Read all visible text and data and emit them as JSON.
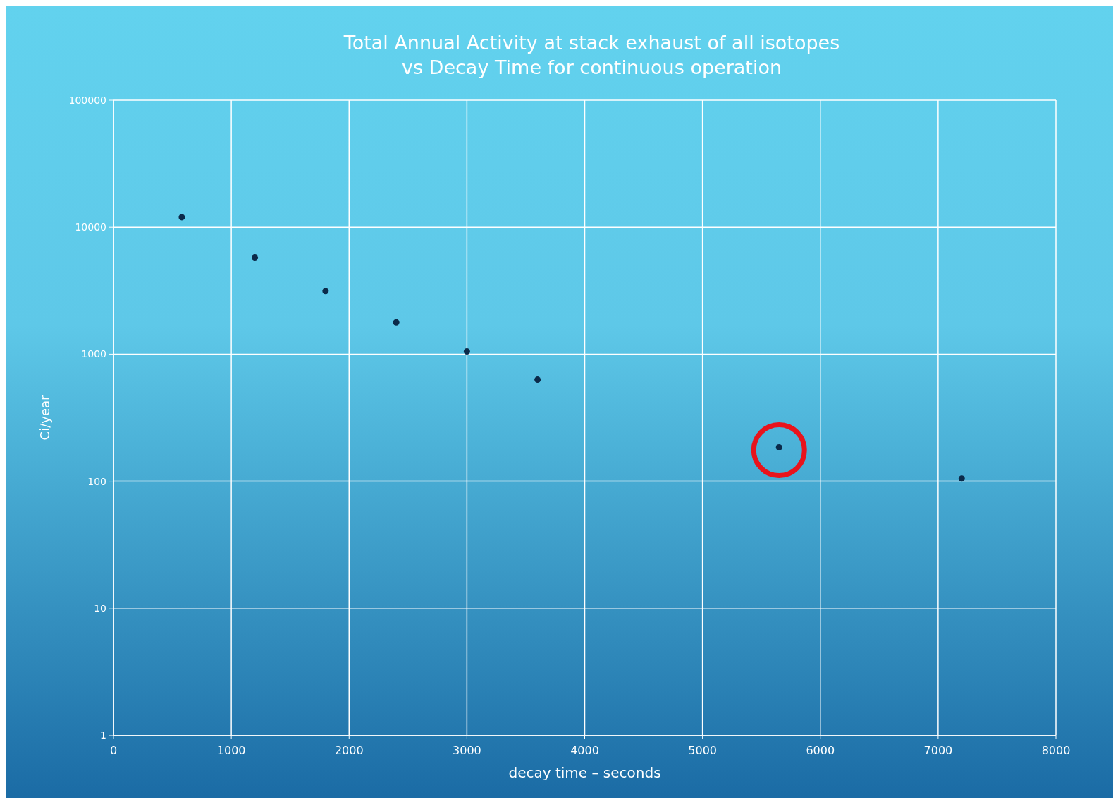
{
  "chart_data": {
    "type": "scatter",
    "title": "Total Annual Activity at stack exhaust of all isotopes\nvs Decay Time for continuous operation",
    "xlabel": "decay time – seconds",
    "ylabel": "Ci/year",
    "x": [
      580,
      1200,
      1800,
      2400,
      3000,
      3600,
      5650,
      7200
    ],
    "series": [
      {
        "color": "#0b2a4a",
        "values": [
          12000,
          5750,
          3140,
          1780,
          1050,
          630,
          185,
          105
        ]
      }
    ],
    "xlim": [
      0,
      8000
    ],
    "xticks": [
      0,
      1000,
      2000,
      3000,
      4000,
      5000,
      6000,
      7000,
      8000
    ],
    "ylim": [
      1,
      100000
    ],
    "yticks": [
      1,
      10,
      100,
      1000,
      10000,
      100000
    ],
    "log": "y",
    "grid": true,
    "marker": "circle"
  }
}
